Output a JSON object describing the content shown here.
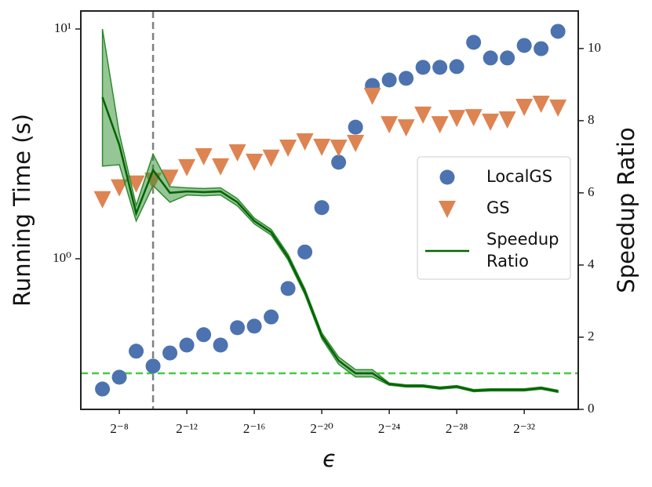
{
  "chart_data": {
    "type": "scatter",
    "xlabel": "ϵ",
    "ylabel": "Running Time (s)",
    "y2label": "Speedup Ratio",
    "xscale": "log",
    "yscale": "log",
    "xlim": [
      0.019,
      2.53e-11
    ],
    "ylim": [
      0.221,
      11.98
    ],
    "y2lim": [
      0,
      11.04
    ],
    "xticks": [
      {
        "value": 0.00390625,
        "label": "2⁻⁸"
      },
      {
        "value": 0.000244140625,
        "label": "2⁻¹²"
      },
      {
        "value": 1.52587890625e-05,
        "label": "2⁻¹⁶"
      },
      {
        "value": 9.5367431640625e-07,
        "label": "2⁻²⁰"
      },
      {
        "value": 5.960464477539063e-08,
        "label": "2⁻²⁴"
      },
      {
        "value": 3.725290298461914e-09,
        "label": "2⁻²⁸"
      },
      {
        "value": 2.3283064365386963e-10,
        "label": "2⁻³²"
      }
    ],
    "yticks": [
      {
        "value": 1,
        "label": "10⁰"
      },
      {
        "value": 10,
        "label": "10¹"
      }
    ],
    "y2ticks": [
      0,
      2,
      4,
      6,
      8,
      10
    ],
    "x": [
      0.0078125,
      0.00390625,
      0.001953125,
      0.0009765625,
      0.00048828125,
      0.000244140625,
      0.0001220703125,
      6.103515625e-05,
      3.0517578125e-05,
      1.52587890625e-05,
      7.62939453125e-06,
      3.814697265625e-06,
      1.9073486328125e-06,
      9.5367431640625e-07,
      4.76837158203125e-07,
      2.384185791015625e-07,
      1.1920928955078125e-07,
      5.960464477539063e-08,
      2.9802322387695312e-08,
      1.4901161193847656e-08,
      7.450580596923828e-09,
      3.725290298461914e-09,
      1.862645149230957e-09,
      9.313225746154785e-10,
      4.656612873077393e-10,
      2.3283064365386963e-10,
      1.1641532182693481e-10,
      5.820766091346741e-11
    ],
    "series": [
      {
        "name": "LocalGS",
        "color": "#4c72b0",
        "marker": "o",
        "axis": "y",
        "values": [
          0.271,
          0.305,
          0.396,
          0.341,
          0.389,
          0.421,
          0.467,
          0.421,
          0.501,
          0.509,
          0.558,
          0.742,
          1.07,
          1.67,
          2.63,
          3.74,
          5.68,
          6.0,
          6.1,
          6.81,
          6.81,
          6.86,
          8.75,
          7.48,
          7.48,
          8.48,
          8.21,
          9.77
        ]
      },
      {
        "name": "GS",
        "color": "#dd8452",
        "marker": "v",
        "axis": "y",
        "values": [
          1.82,
          2.05,
          2.13,
          2.19,
          2.26,
          2.51,
          2.8,
          2.53,
          2.91,
          2.65,
          2.76,
          3.05,
          3.25,
          3.08,
          3.05,
          3.2,
          5.13,
          3.86,
          3.74,
          4.25,
          3.86,
          4.11,
          4.14,
          3.96,
          4.05,
          4.59,
          4.74,
          4.56
        ]
      },
      {
        "name": "Speedup Ratio",
        "color": "#006400",
        "band_color": "#2e8b2e",
        "style": "line",
        "axis": "y2",
        "values": [
          8.65,
          7.33,
          5.43,
          6.63,
          6.0,
          6.04,
          6.02,
          6.04,
          5.74,
          5.22,
          4.91,
          4.22,
          3.26,
          2.04,
          1.35,
          1.0,
          1.0,
          0.7,
          0.65,
          0.65,
          0.59,
          0.63,
          0.52,
          0.54,
          0.54,
          0.54,
          0.59,
          0.5
        ],
        "lower": [
          6.74,
          6.78,
          5.22,
          6.2,
          5.74,
          5.94,
          5.92,
          5.94,
          5.64,
          5.14,
          4.83,
          4.14,
          3.18,
          1.96,
          1.25,
          0.9,
          0.9,
          0.67,
          0.62,
          0.62,
          0.56,
          0.6,
          0.49,
          0.51,
          0.51,
          0.51,
          0.56,
          0.47
        ],
        "upper": [
          10.54,
          7.65,
          5.65,
          7.07,
          6.17,
          6.14,
          6.12,
          6.14,
          5.84,
          5.3,
          4.99,
          4.3,
          3.34,
          2.12,
          1.45,
          1.1,
          1.1,
          0.73,
          0.68,
          0.68,
          0.62,
          0.66,
          0.55,
          0.57,
          0.57,
          0.57,
          0.62,
          0.53
        ]
      }
    ],
    "vlines": [
      {
        "x": 0.0009765625,
        "color": "#808080"
      }
    ],
    "hlines": [
      {
        "y2": 1,
        "color": "#44cc44"
      }
    ],
    "legend": "center right"
  }
}
